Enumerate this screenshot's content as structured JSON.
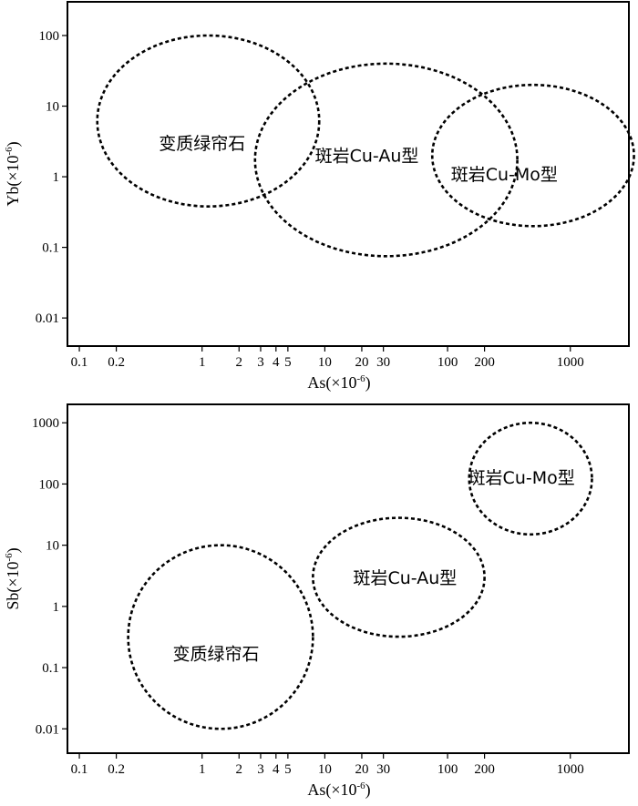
{
  "chart_data": [
    {
      "type": "scatter",
      "xlabel": "As(×10",
      "xlabel_sup": "-6",
      "xlabel_end": ")",
      "ylabel": "Yb(×10",
      "ylabel_sup": "-6",
      "ylabel_end": ")",
      "xscale": "log",
      "yscale": "log",
      "xlim": [
        0.08,
        3000
      ],
      "ylim": [
        0.004,
        300
      ],
      "xticks": [
        {
          "v": 0.1,
          "label": "0.1"
        },
        {
          "v": 0.2,
          "label": "0.2"
        },
        {
          "v": 1,
          "label": "1"
        },
        {
          "v": 2,
          "label": "2"
        },
        {
          "v": 3,
          "label": "3"
        },
        {
          "v": 4,
          "label": "4"
        },
        {
          "v": 5,
          "label": "5"
        },
        {
          "v": 10,
          "label": "10"
        },
        {
          "v": 20,
          "label": "20"
        },
        {
          "v": 30,
          "label": "30"
        },
        {
          "v": 100,
          "label": "100"
        },
        {
          "v": 200,
          "label": "200"
        },
        {
          "v": 1000,
          "label": "1000"
        }
      ],
      "yticks": [
        {
          "v": 0.01,
          "label": "0.01"
        },
        {
          "v": 0.1,
          "label": "0.1"
        },
        {
          "v": 1,
          "label": "1"
        },
        {
          "v": 10,
          "label": "10"
        },
        {
          "v": 100,
          "label": "100"
        }
      ],
      "fields": [
        {
          "label": "变质绿帘石",
          "x_range": [
            0.14,
            9
          ],
          "y_range": [
            0.38,
            100
          ],
          "label_at": [
            1,
            3.0
          ]
        },
        {
          "label": "斑岩Cu-Au型",
          "x_range": [
            2.7,
            370
          ],
          "y_range": [
            0.075,
            40
          ],
          "label_at": [
            22,
            2.0
          ]
        },
        {
          "label": "斑岩Cu-Mo型",
          "x_range": [
            75,
            3300
          ],
          "y_range": [
            0.2,
            20
          ],
          "label_at": [
            290,
            1.1
          ]
        }
      ]
    },
    {
      "type": "scatter",
      "xlabel": "As(×10",
      "xlabel_sup": "-6",
      "xlabel_end": ")",
      "ylabel": "Sb(×10",
      "ylabel_sup": "-6",
      "ylabel_end": ")",
      "xscale": "log",
      "yscale": "log",
      "xlim": [
        0.08,
        3000
      ],
      "ylim": [
        0.004,
        2000
      ],
      "xticks": [
        {
          "v": 0.1,
          "label": "0.1"
        },
        {
          "v": 0.2,
          "label": "0.2"
        },
        {
          "v": 1,
          "label": "1"
        },
        {
          "v": 2,
          "label": "2"
        },
        {
          "v": 3,
          "label": "3"
        },
        {
          "v": 4,
          "label": "4"
        },
        {
          "v": 5,
          "label": "5"
        },
        {
          "v": 10,
          "label": "10"
        },
        {
          "v": 20,
          "label": "20"
        },
        {
          "v": 30,
          "label": "30"
        },
        {
          "v": 100,
          "label": "100"
        },
        {
          "v": 200,
          "label": "200"
        },
        {
          "v": 1000,
          "label": "1000"
        }
      ],
      "yticks": [
        {
          "v": 0.01,
          "label": "0.01"
        },
        {
          "v": 0.1,
          "label": "0.1"
        },
        {
          "v": 1,
          "label": "1"
        },
        {
          "v": 10,
          "label": "10"
        },
        {
          "v": 100,
          "label": "100"
        },
        {
          "v": 1000,
          "label": "1000"
        }
      ],
      "fields": [
        {
          "label": "变质绿帘石",
          "x_range": [
            0.25,
            8
          ],
          "y_range": [
            0.01,
            10
          ],
          "label_at": [
            1.3,
            0.17
          ]
        },
        {
          "label": "斑岩Cu-Au型",
          "x_range": [
            8,
            200
          ],
          "y_range": [
            0.32,
            28
          ],
          "label_at": [
            45,
            3
          ]
        },
        {
          "label": "斑岩Cu-Mo型",
          "x_range": [
            150,
            1500
          ],
          "y_range": [
            15,
            1000
          ],
          "label_at": [
            400,
            130
          ]
        }
      ]
    }
  ]
}
